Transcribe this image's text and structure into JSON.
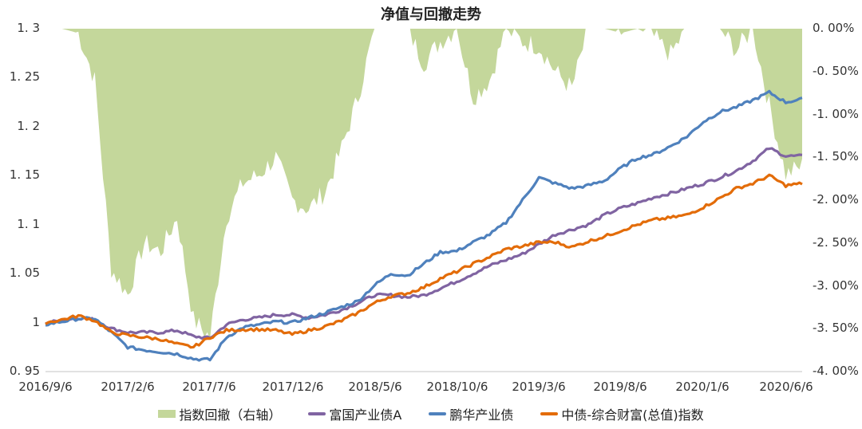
{
  "chart_data": {
    "type": "line",
    "title": "净值与回撤走势",
    "xlabel": "",
    "ylabel": "",
    "y2label": "",
    "ylim": [
      0.95,
      1.3
    ],
    "y2lim": [
      -0.04,
      0.0
    ],
    "grid": false,
    "legend_position": "bottom",
    "x_tick_labels": [
      "2016/9/6",
      "2017/2/6",
      "2017/7/6",
      "2017/12/6",
      "2018/5/6",
      "2018/10/6",
      "2019/3/6",
      "2019/8/6",
      "2020/1/6",
      "2020/6/6"
    ],
    "y_tick_labels": [
      "1. 3",
      "1. 25",
      "1. 2",
      "1. 15",
      "1. 1",
      "1. 05",
      "1",
      "0. 95"
    ],
    "y2_tick_labels": [
      "0. 00%",
      "-0. 50%",
      "-1. 00%",
      "-1. 50%",
      "-2. 00%",
      "-2. 50%",
      "-3. 00%",
      "-3. 50%",
      "-4. 00%"
    ],
    "x": [
      "2016/9",
      "2016/10",
      "2016/11",
      "2016/12",
      "2017/1",
      "2017/2",
      "2017/3",
      "2017/4",
      "2017/5",
      "2017/6",
      "2017/7",
      "2017/8",
      "2017/9",
      "2017/10",
      "2017/11",
      "2017/12",
      "2018/1",
      "2018/2",
      "2018/3",
      "2018/4",
      "2018/5",
      "2018/6",
      "2018/7",
      "2018/8",
      "2018/9",
      "2018/10",
      "2018/11",
      "2018/12",
      "2019/1",
      "2019/2",
      "2019/3",
      "2019/4",
      "2019/5",
      "2019/6",
      "2019/7",
      "2019/8",
      "2019/9",
      "2019/10",
      "2019/11",
      "2019/12",
      "2020/1",
      "2020/2",
      "2020/3",
      "2020/4",
      "2020/5",
      "2020/6",
      "2020/6e"
    ],
    "series": [
      {
        "name": "指数回撤（右轴）",
        "type": "area",
        "axis": "right",
        "color": "#c4d79b",
        "values": [
          0.0,
          0.0,
          -0.0005,
          -0.006,
          -0.028,
          -0.031,
          -0.025,
          -0.026,
          -0.022,
          -0.034,
          -0.036,
          -0.022,
          -0.018,
          -0.017,
          -0.015,
          -0.02,
          -0.021,
          -0.019,
          -0.014,
          -0.008,
          0.0,
          0.0,
          0.0,
          -0.004,
          -0.0015,
          0.0,
          -0.008,
          -0.006,
          0.0,
          -0.0015,
          -0.002,
          -0.005,
          -0.007,
          0.0,
          0.0,
          -0.0005,
          0.0,
          -0.001,
          -0.003,
          0.0,
          0.0,
          0.0,
          -0.0025,
          0.0,
          -0.009,
          -0.017,
          -0.016
        ]
      },
      {
        "name": "富国产业债A",
        "type": "line",
        "axis": "left",
        "color": "#8064a2",
        "values": [
          1.0,
          1.002,
          1.005,
          1.003,
          0.994,
          0.99,
          0.99,
          0.99,
          0.992,
          0.986,
          0.984,
          0.998,
          1.003,
          1.005,
          1.008,
          1.008,
          1.005,
          1.008,
          1.013,
          1.02,
          1.028,
          1.028,
          1.026,
          1.028,
          1.035,
          1.042,
          1.05,
          1.058,
          1.064,
          1.07,
          1.08,
          1.09,
          1.095,
          1.1,
          1.11,
          1.117,
          1.122,
          1.128,
          1.132,
          1.137,
          1.142,
          1.148,
          1.155,
          1.165,
          1.178,
          1.17,
          1.17
        ]
      },
      {
        "name": "鹏华产业债",
        "type": "line",
        "axis": "left",
        "color": "#4f81bd",
        "values": [
          0.998,
          1.001,
          1.004,
          1.004,
          0.99,
          0.975,
          0.972,
          0.97,
          0.968,
          0.963,
          0.962,
          0.985,
          0.995,
          0.998,
          1.001,
          1.0,
          1.005,
          1.01,
          1.016,
          1.022,
          1.038,
          1.05,
          1.048,
          1.06,
          1.072,
          1.073,
          1.082,
          1.09,
          1.102,
          1.125,
          1.148,
          1.142,
          1.137,
          1.14,
          1.145,
          1.158,
          1.168,
          1.172,
          1.18,
          1.19,
          1.205,
          1.215,
          1.22,
          1.227,
          1.235,
          1.225,
          1.228
        ]
      },
      {
        "name": "中债-综合财富(总值)指数",
        "type": "line",
        "axis": "left",
        "color": "#e36c09",
        "values": [
          1.0,
          1.003,
          1.007,
          1.002,
          0.99,
          0.987,
          0.985,
          0.983,
          0.978,
          0.975,
          0.985,
          0.992,
          0.993,
          0.993,
          0.992,
          0.988,
          0.992,
          0.996,
          1.002,
          1.01,
          1.02,
          1.027,
          1.03,
          1.036,
          1.045,
          1.052,
          1.06,
          1.067,
          1.075,
          1.078,
          1.082,
          1.082,
          1.077,
          1.083,
          1.088,
          1.094,
          1.1,
          1.105,
          1.107,
          1.11,
          1.118,
          1.127,
          1.137,
          1.142,
          1.15,
          1.14,
          1.142
        ]
      }
    ]
  },
  "legend": {
    "items": [
      {
        "label": "指数回撤（右轴）",
        "color": "#c4d79b",
        "kind": "area"
      },
      {
        "label": "富国产业债A",
        "color": "#8064a2",
        "kind": "line"
      },
      {
        "label": "鹏华产业债",
        "color": "#4f81bd",
        "kind": "line"
      },
      {
        "label": "中债-综合财富(总值)指数",
        "color": "#e36c09",
        "kind": "line"
      }
    ]
  }
}
